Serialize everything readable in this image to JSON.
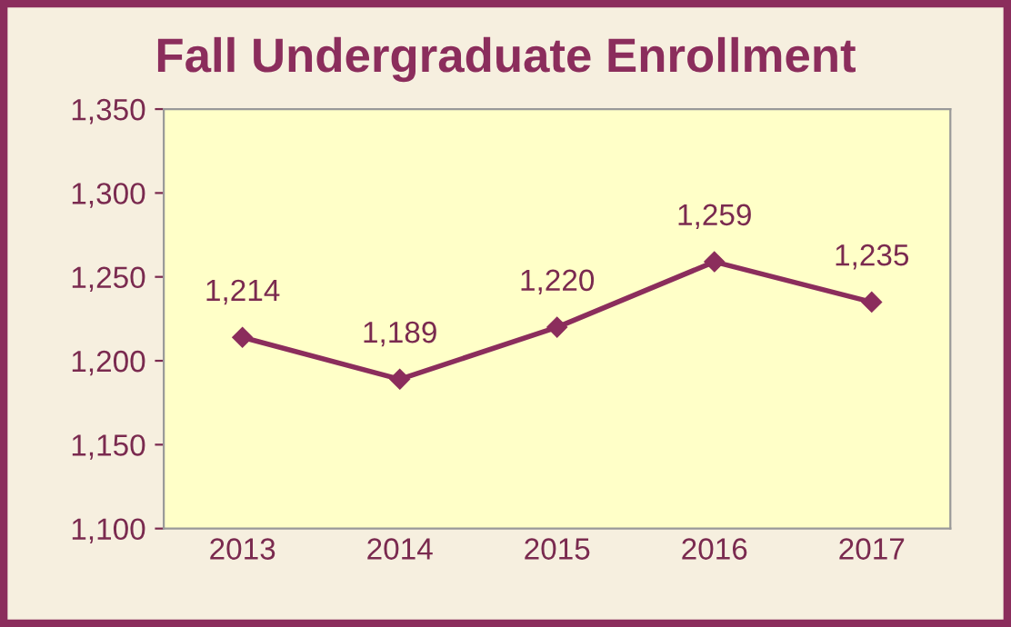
{
  "chart_data": {
    "type": "line",
    "title": "Fall Undergraduate Enrollment",
    "categories": [
      "2013",
      "2014",
      "2015",
      "2016",
      "2017"
    ],
    "series": [
      {
        "color": "#8b2d5c",
        "values": [
          1214,
          1189,
          1220,
          1259,
          1235
        ],
        "value_labels": [
          "1,214",
          "1,189",
          "1,220",
          "1,259",
          "1,235"
        ]
      }
    ],
    "ylim": [
      1100,
      1350
    ],
    "yticks": [
      {
        "value": 1100,
        "label": "1,100"
      },
      {
        "value": 1150,
        "label": "1,150"
      },
      {
        "value": 1200,
        "label": "1,200"
      },
      {
        "value": 1250,
        "label": "1,250"
      },
      {
        "value": 1300,
        "label": "1,300"
      },
      {
        "value": 1350,
        "label": "1,350"
      }
    ],
    "marker": "diamond",
    "line_style": "solid",
    "grid": false,
    "legend": false
  }
}
